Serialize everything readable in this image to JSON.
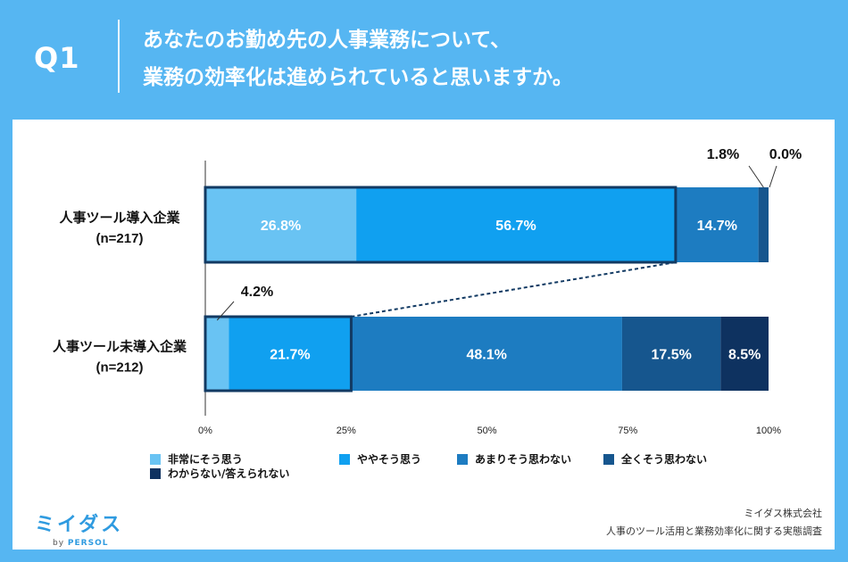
{
  "header": {
    "q_label": "Q1",
    "question_line1": "あなたのお勤め先の人事業務について、",
    "question_line2": "業務の効率化は進められていると思いますか。"
  },
  "chart_data": {
    "type": "bar",
    "orientation": "horizontal-stacked-100",
    "categories": [
      {
        "name": "人事ツール導入企業",
        "n": "(n=217)"
      },
      {
        "name": "人事ツール未導入企業",
        "n": "(n=212)"
      }
    ],
    "series": [
      {
        "name": "非常にそう思う",
        "color": "#69c3f3",
        "values": [
          26.8,
          4.2
        ]
      },
      {
        "name": "ややそう思う",
        "color": "#10a0f0",
        "values": [
          56.7,
          21.7
        ]
      },
      {
        "name": "あまりそう思わない",
        "color": "#1d7cc1",
        "values": [
          14.7,
          48.1
        ]
      },
      {
        "name": "全くそう思わない",
        "color": "#16568e",
        "values": [
          1.8,
          17.5
        ]
      },
      {
        "name": "わからない/答えられない",
        "color": "#0e3260",
        "values": [
          0.0,
          8.5
        ]
      }
    ],
    "value_labels": [
      [
        "26.8%",
        "56.7%",
        "14.7%",
        "1.8%",
        "0.0%"
      ],
      [
        "4.2%",
        "21.7%",
        "48.1%",
        "17.5%",
        "8.5%"
      ]
    ],
    "xaxis_ticks": [
      "0%",
      "25%",
      "50%",
      "75%",
      "100%"
    ],
    "xlim": [
      0,
      100
    ],
    "legend_position": "bottom"
  },
  "branding": {
    "logo_text": "ミイダス",
    "logo_sub_prefix": "by",
    "logo_sub_brand": "PERSOL"
  },
  "source": {
    "company": "ミイダス株式会社",
    "survey": "人事のツール活用と業務効率化に関する実態調査"
  }
}
